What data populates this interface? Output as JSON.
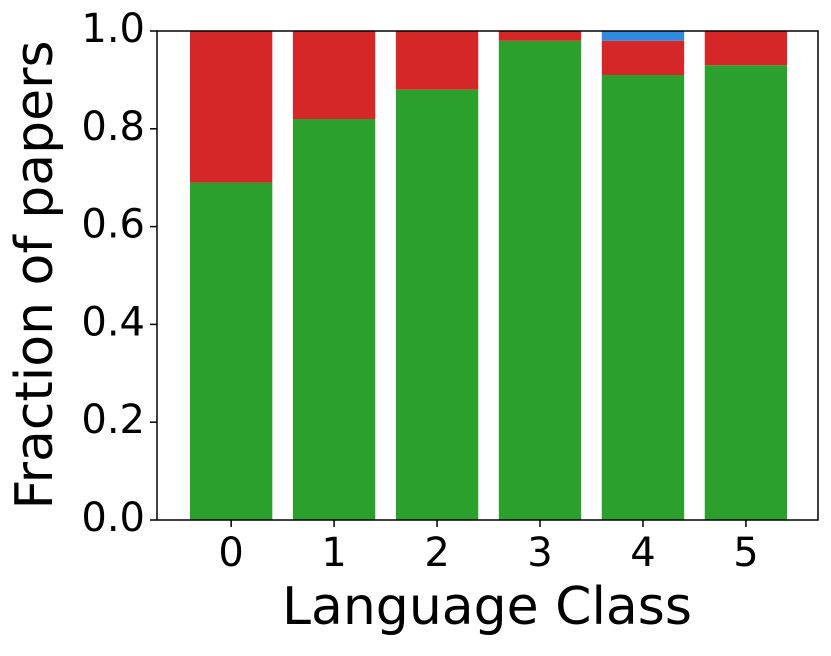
{
  "chart_data": {
    "type": "stacked_bar",
    "xlabel": "Language Class",
    "ylabel": "Fraction of papers",
    "categories": [
      "0",
      "1",
      "2",
      "3",
      "4",
      "5"
    ],
    "series": [
      {
        "color": "#2ca02c",
        "values": [
          0.69,
          0.82,
          0.88,
          0.98,
          0.91,
          0.93
        ]
      },
      {
        "color": "#d62728",
        "values": [
          0.31,
          0.18,
          0.12,
          0.02,
          0.07,
          0.07
        ]
      },
      {
        "color": "#2f8ae0",
        "values": [
          0,
          0,
          0,
          0,
          0.02,
          0
        ]
      }
    ],
    "ylim": [
      0,
      1
    ],
    "yticks": [
      {
        "value": 0,
        "label": "0.0"
      },
      {
        "value": 0.2,
        "label": "0.2"
      },
      {
        "value": 0.4,
        "label": "0.4"
      },
      {
        "value": 0.6,
        "label": "0.6"
      },
      {
        "value": 0.8,
        "label": "0.8"
      },
      {
        "value": 1,
        "label": "1.0"
      }
    ]
  }
}
